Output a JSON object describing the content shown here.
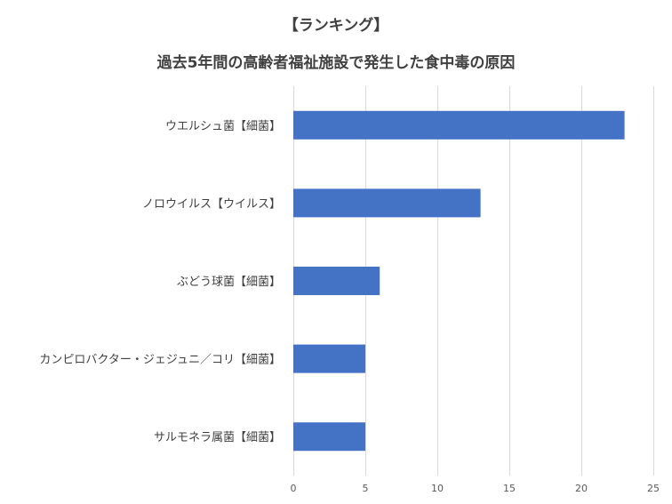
{
  "chart_data": {
    "type": "bar",
    "orientation": "horizontal",
    "title": "【ランキング】",
    "subtitle": "過去5年間の高齢者福祉施設で発生した食中毒の原因",
    "categories": [
      "ウエルシュ菌【細菌】",
      "ノロウイルス【ウイルス】",
      "ぶどう球菌【細菌】",
      "カンピロバクター・ジェジュニ／コリ【細菌】",
      "サルモネラ属菌【細菌】"
    ],
    "values": [
      23,
      13,
      6,
      5,
      5
    ],
    "xlim": [
      0,
      25
    ],
    "xticks": [
      0,
      5,
      10,
      15,
      20,
      25
    ],
    "grid": true,
    "bar_color": "#4472c4",
    "legend": "none"
  }
}
